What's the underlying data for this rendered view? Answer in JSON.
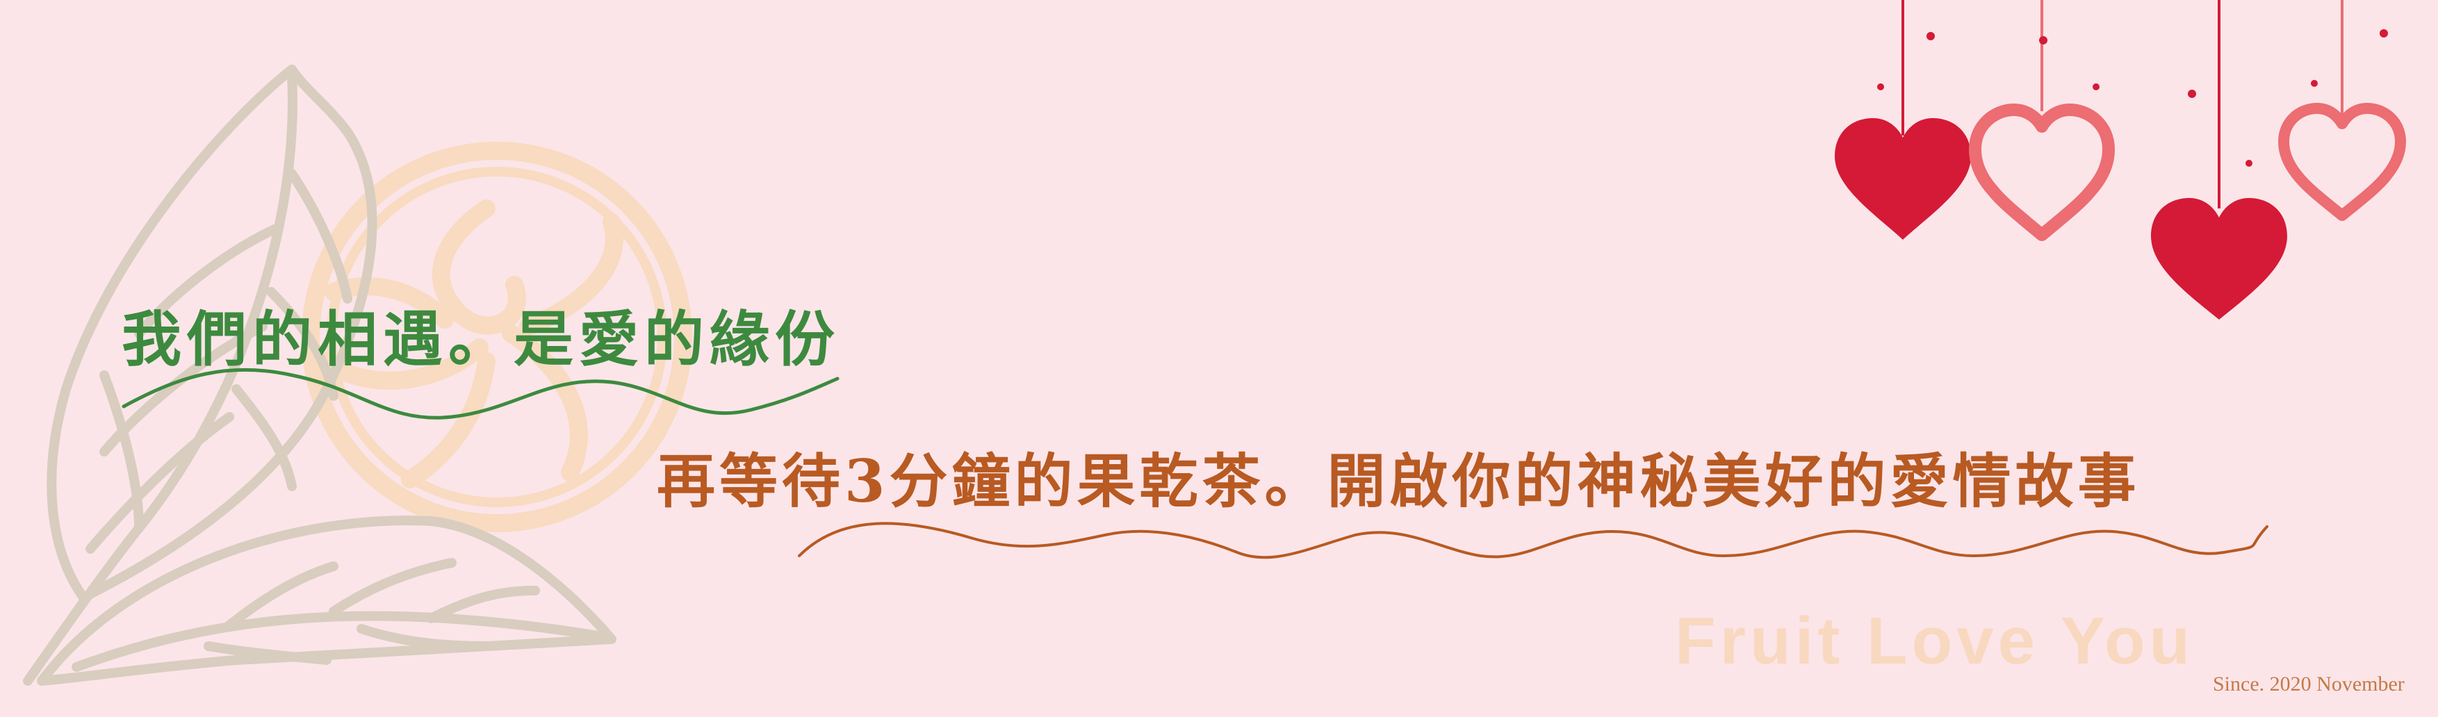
{
  "banner": {
    "headline": "我們的相遇。是愛的緣份",
    "subline": "再等待3分鐘的果乾茶。開啟你的神秘美好的愛情故事",
    "watermark": "Fruit  Love You",
    "since": "Since. 2020 November"
  },
  "colors": {
    "background": "#fbe5e9",
    "headline": "#3d8a3f",
    "subline": "#b85a22",
    "leaf": "#d8cdbf",
    "orange_art": "#f8dbc0",
    "watermark": "#f8d8bf",
    "heart_red": "#d41a36",
    "heart_outline": "#ec6d72",
    "since_text": "#c37a44"
  },
  "icons": {
    "leaf_art": "leaf-line-art-icon",
    "fruit_ring": "orange-slice-icon",
    "hearts": "hanging-hearts-icon"
  }
}
